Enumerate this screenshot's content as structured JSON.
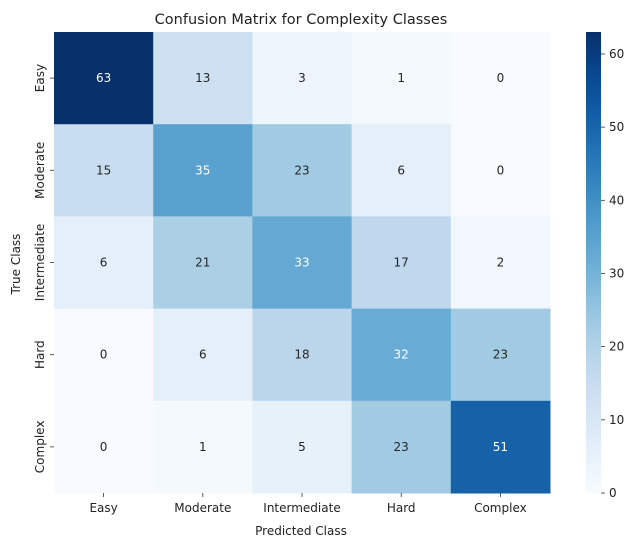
{
  "chart_data": {
    "type": "heatmap",
    "title": "Confusion Matrix for Complexity Classes",
    "xlabel": "Predicted Class",
    "ylabel": "True Class",
    "x_categories": [
      "Easy",
      "Moderate",
      "Intermediate",
      "Hard",
      "Complex"
    ],
    "y_categories": [
      "Easy",
      "Moderate",
      "Intermediate",
      "Hard",
      "Complex"
    ],
    "values": [
      [
        63,
        13,
        3,
        1,
        0
      ],
      [
        15,
        35,
        23,
        6,
        0
      ],
      [
        6,
        21,
        33,
        17,
        2
      ],
      [
        0,
        6,
        18,
        32,
        23
      ],
      [
        0,
        1,
        5,
        23,
        51
      ]
    ],
    "colorbar": {
      "min": 0,
      "max": 63,
      "ticks": [
        0,
        10,
        20,
        30,
        40,
        50,
        60
      ],
      "colormap": "Blues"
    },
    "annotations": true
  }
}
